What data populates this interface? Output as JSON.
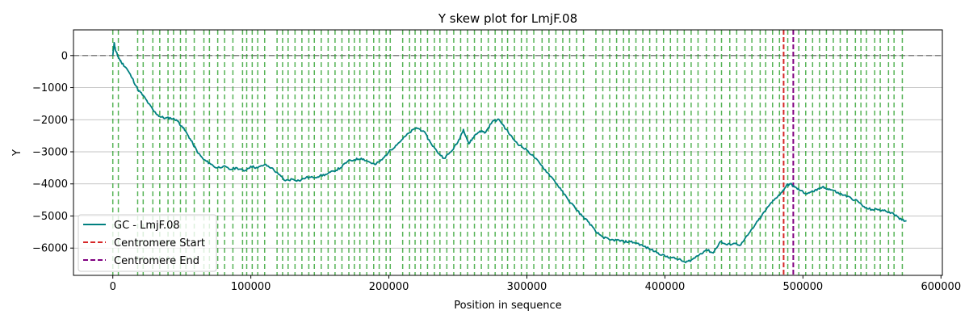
{
  "chart_data": {
    "type": "line",
    "title": "Y skew plot for LmjF.08",
    "xlabel": "Position in sequence",
    "ylabel": "Y",
    "xlim": [
      -28500,
      601000
    ],
    "ylim": [
      -6850,
      800
    ],
    "x_ticks": [
      0,
      100000,
      200000,
      300000,
      400000,
      500000,
      600000
    ],
    "x_tick_labels": [
      "0",
      "100000",
      "200000",
      "300000",
      "400000",
      "500000",
      "600000"
    ],
    "y_ticks": [
      0,
      -1000,
      -2000,
      -3000,
      -4000,
      -5000,
      -6000
    ],
    "y_tick_labels": [
      "0",
      "−1000",
      "−2000",
      "−3000",
      "−4000",
      "−5000",
      "−6000"
    ],
    "grid": "y",
    "legend_position": "lower-left",
    "colors": {
      "series": "#008080",
      "centromere_start": "#d62728",
      "centromere_end": "#800080",
      "markers": "#2ca02c",
      "zero_line": "#808080"
    },
    "series": [
      {
        "name": "GC - LmjF.08",
        "x": [
          0,
          1000,
          2000,
          4000,
          6000,
          10000,
          14000,
          18000,
          22000,
          26000,
          30000,
          34000,
          38000,
          42000,
          46000,
          50000,
          54000,
          58000,
          62000,
          66000,
          70000,
          75000,
          80000,
          85000,
          90000,
          95000,
          100000,
          105000,
          110000,
          115000,
          120000,
          125000,
          130000,
          135000,
          140000,
          145000,
          150000,
          155000,
          160000,
          165000,
          170000,
          175000,
          180000,
          185000,
          190000,
          195000,
          200000,
          205000,
          210000,
          215000,
          220000,
          225000,
          230000,
          235000,
          240000,
          245000,
          250000,
          254000,
          258000,
          262000,
          266000,
          270000,
          275000,
          280000,
          285000,
          290000,
          295000,
          300000,
          305000,
          310000,
          315000,
          320000,
          325000,
          330000,
          335000,
          340000,
          345000,
          350000,
          355000,
          360000,
          365000,
          370000,
          375000,
          380000,
          385000,
          390000,
          395000,
          400000,
          405000,
          410000,
          415000,
          420000,
          425000,
          430000,
          435000,
          440000,
          445000,
          450000,
          455000,
          460000,
          465000,
          470000,
          475000,
          480000,
          485000,
          488000,
          491000,
          494000,
          498000,
          502000,
          506000,
          510000,
          514000,
          518000,
          522000,
          526000,
          530000,
          535000,
          540000,
          545000,
          550000,
          555000,
          560000,
          565000,
          570000,
          575000
        ],
        "values": [
          0,
          400,
          150,
          -50,
          -200,
          -400,
          -700,
          -1050,
          -1250,
          -1500,
          -1750,
          -1900,
          -1950,
          -1950,
          -2000,
          -2200,
          -2450,
          -2750,
          -3050,
          -3250,
          -3350,
          -3500,
          -3450,
          -3550,
          -3500,
          -3600,
          -3450,
          -3500,
          -3400,
          -3500,
          -3700,
          -3900,
          -3850,
          -3900,
          -3800,
          -3800,
          -3750,
          -3700,
          -3600,
          -3500,
          -3300,
          -3250,
          -3200,
          -3300,
          -3400,
          -3250,
          -3000,
          -2800,
          -2600,
          -2400,
          -2250,
          -2350,
          -2700,
          -3000,
          -3200,
          -3000,
          -2700,
          -2300,
          -2750,
          -2500,
          -2350,
          -2400,
          -2050,
          -2000,
          -2300,
          -2600,
          -2800,
          -2950,
          -3150,
          -3400,
          -3650,
          -3900,
          -4200,
          -4500,
          -4750,
          -5000,
          -5200,
          -5500,
          -5650,
          -5750,
          -5750,
          -5800,
          -5800,
          -5850,
          -5950,
          -6050,
          -6150,
          -6250,
          -6300,
          -6350,
          -6450,
          -6350,
          -6200,
          -6050,
          -6150,
          -5800,
          -5900,
          -5850,
          -5900,
          -5600,
          -5300,
          -5000,
          -4700,
          -4450,
          -4250,
          -4050,
          -4000,
          -4100,
          -4200,
          -4300,
          -4250,
          -4200,
          -4100,
          -4150,
          -4200,
          -4300,
          -4350,
          -4450,
          -4550,
          -4750,
          -4800,
          -4800,
          -4850,
          -4900,
          -5100,
          -5150
        ]
      },
      {
        "name": "Centromere Start",
        "x_position": 486000
      },
      {
        "name": "Centromere End",
        "x_position": 493000
      }
    ],
    "marker_positions": [
      0,
      4000,
      18000,
      22000,
      29000,
      34000,
      40000,
      44000,
      49000,
      53000,
      59000,
      66000,
      70000,
      76000,
      81000,
      87000,
      94000,
      97000,
      101000,
      105000,
      110000,
      119000,
      123000,
      127000,
      132000,
      137000,
      142000,
      146000,
      151000,
      156000,
      161000,
      166000,
      171000,
      175000,
      179000,
      184000,
      189000,
      193000,
      198000,
      201000,
      210000,
      215000,
      219000,
      223000,
      228000,
      233000,
      237000,
      242000,
      247000,
      252000,
      257000,
      262000,
      267000,
      272000,
      277000,
      282000,
      286000,
      291000,
      296000,
      300000,
      305000,
      311000,
      316000,
      321000,
      326000,
      331000,
      336000,
      341000,
      350000,
      355000,
      360000,
      365000,
      370000,
      374000,
      379000,
      384000,
      389000,
      394000,
      399000,
      404000,
      409000,
      414000,
      419000,
      424000,
      430000,
      436000,
      441000,
      447000,
      452000,
      458000,
      463000,
      469000,
      473000,
      478000,
      483000,
      489000,
      497000,
      502000,
      507000,
      512000,
      517000,
      522000,
      527000,
      532000,
      538000,
      542000,
      546000,
      552000,
      556000,
      562000,
      566000,
      572000
    ]
  }
}
